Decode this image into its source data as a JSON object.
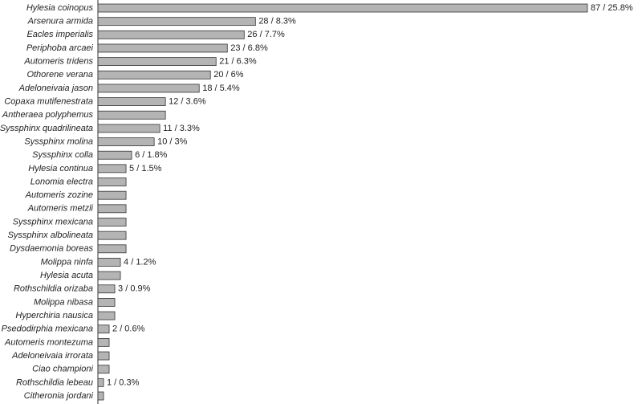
{
  "chart_data": {
    "type": "bar",
    "orientation": "horizontal",
    "color": "#b4b4b4",
    "categories": [
      "Hylesia coinopus",
      "Arsenura armida",
      "Eacles imperialis",
      "Periphoba arcaei",
      "Automeris tridens",
      "Othorene verana",
      "Adeloneivaia jason",
      "Copaxa mutifenestrata",
      "Antheraea polyphemus",
      "Syssphinx quadrilineata",
      "Syssphinx molina",
      "Syssphinx colla",
      "Hylesia continua",
      "Lonomia electra",
      "Automeris zozine",
      "Automeris metzli",
      "Syssphinx mexicana",
      "Syssphinx albolineata",
      "Dysdaemonia boreas",
      "Molippa ninfa",
      "Hylesia acuta",
      "Rothschildia orizaba",
      "Molippa nibasa",
      "Hyperchiria nausica",
      "Psedodirphia mexicana",
      "Automeris montezuma",
      "Adeloneivaia irrorata",
      "Ciao championi",
      "Rothschildia lebeau",
      "Citheronia jordani"
    ],
    "values": [
      87,
      28,
      26,
      23,
      21,
      20,
      18,
      12,
      12,
      11,
      10,
      6,
      5,
      5,
      5,
      5,
      5,
      5,
      5,
      4,
      4,
      3,
      3,
      3,
      2,
      2,
      2,
      2,
      1,
      1
    ],
    "value_labels": [
      "87 / 25.8%",
      "28 / 8.3%",
      "26 / 7.7%",
      "23 / 6.8%",
      "21 / 6.3%",
      "20 / 6%",
      "18 / 5.4%",
      "12 / 3.6%",
      null,
      "11 / 3.3%",
      "10 / 3%",
      "6 / 1.8%",
      "5 / 1.5%",
      null,
      null,
      null,
      null,
      null,
      null,
      "4 / 1.2%",
      null,
      "3 / 0.9%",
      null,
      null,
      "2 / 0.6%",
      null,
      null,
      null,
      "1 / 0.3%",
      null
    ]
  }
}
